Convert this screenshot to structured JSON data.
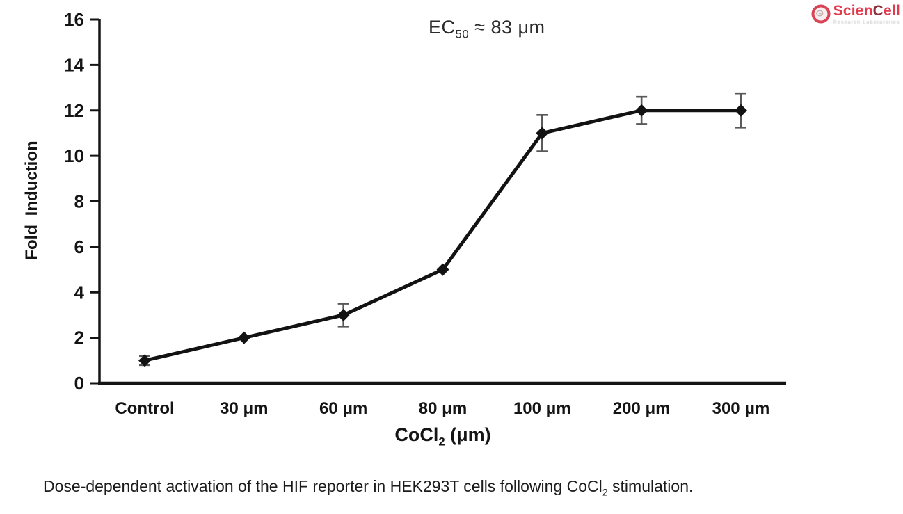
{
  "logo": {
    "text_part1": "Scien",
    "text_part2": "C",
    "text_part3": "ell",
    "tagline": "Research Laboratories",
    "primary_color": "#e23b4e",
    "accent_color": "#8d2f3c",
    "emblem_color": "#d94556"
  },
  "chart_data": {
    "type": "line",
    "title": "",
    "annotation": {
      "pre": "EC",
      "sub": "50",
      "post": " ≈ 83 μm"
    },
    "categories": [
      "Control",
      "30 μm",
      "60 μm",
      "80 μm",
      "100 μm",
      "200 μm",
      "300 μm"
    ],
    "series": [
      {
        "name": "Fold Induction",
        "values": [
          1,
          2,
          3,
          5,
          11,
          12,
          12
        ],
        "error_bars": [
          0.2,
          0,
          0.5,
          0,
          0.8,
          0.6,
          0.75
        ]
      }
    ],
    "xlabel": {
      "pre": "CoCl",
      "sub": "2",
      "post": " (μm)"
    },
    "ylabel": "Fold Induction",
    "ylim": [
      0,
      16
    ],
    "yticks": [
      0,
      2,
      4,
      6,
      8,
      10,
      12,
      14,
      16
    ],
    "grid": false,
    "legend": "none",
    "marker": "diamond",
    "line_color": "#121212",
    "marker_color": "#121212",
    "error_bar_color": "#595959"
  },
  "caption": {
    "pre": "Dose-dependent activation of the HIF reporter in HEK293T cells following CoCl",
    "sub": "2",
    "post": " stimulation."
  }
}
